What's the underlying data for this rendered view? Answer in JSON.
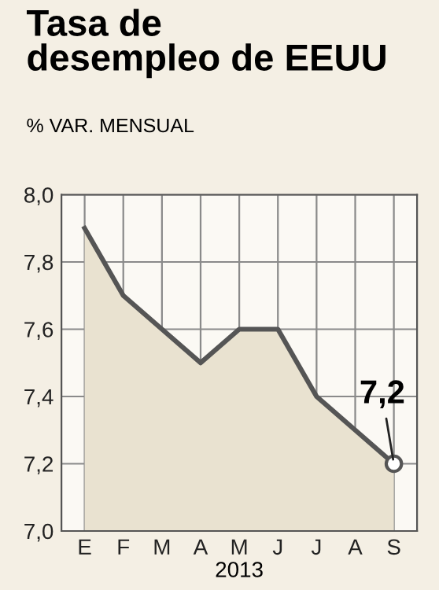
{
  "chart_data": {
    "type": "area",
    "title": "Tasa de\ndesempleo de EEUU",
    "subtitle": "% VAR. MENSUAL",
    "xlabel": "2013",
    "categories": [
      "E",
      "F",
      "M",
      "A",
      "M",
      "J",
      "J",
      "A",
      "S"
    ],
    "series": [
      {
        "color": "#555555",
        "values": [
          7.9,
          7.7,
          7.6,
          7.5,
          7.6,
          7.6,
          7.4,
          7.3,
          7.2
        ]
      }
    ],
    "ylim": [
      7.0,
      8.0
    ],
    "yticks": [
      {
        "value": 7.0,
        "label": "7,0"
      },
      {
        "value": 7.2,
        "label": "7,2"
      },
      {
        "value": 7.4,
        "label": "7,4"
      },
      {
        "value": 7.6,
        "label": "7,6"
      },
      {
        "value": 7.8,
        "label": "7,8"
      },
      {
        "value": 8.0,
        "label": "8,0"
      }
    ],
    "annotations": [
      {
        "text": "7,2",
        "x": "S",
        "y": 7.2
      }
    ],
    "grid": true,
    "legend": false
  }
}
